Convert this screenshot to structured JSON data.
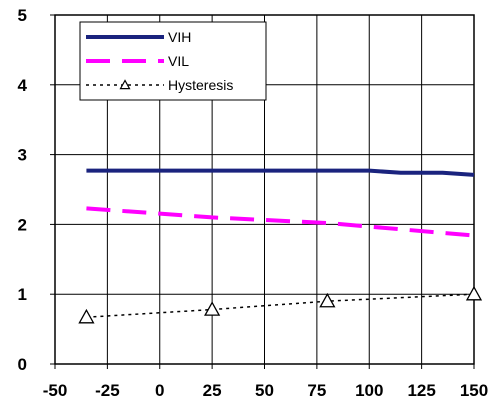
{
  "chart_data": {
    "type": "line",
    "title": "",
    "xlabel": "",
    "ylabel": "",
    "xlim": [
      -50,
      150
    ],
    "ylim": [
      0,
      5
    ],
    "x_ticks": [
      -50,
      -25,
      0,
      25,
      50,
      75,
      100,
      125,
      150
    ],
    "y_ticks": [
      0,
      1,
      2,
      3,
      4,
      5
    ],
    "grid": true,
    "legend_position": "top-left",
    "series": [
      {
        "name": "VIH",
        "style": "solid",
        "color": "#1a237e",
        "x": [
          -35,
          25,
          80,
          100,
          115,
          135,
          150
        ],
        "y": [
          2.77,
          2.77,
          2.77,
          2.77,
          2.74,
          2.74,
          2.71
        ]
      },
      {
        "name": "VIL",
        "style": "dashed",
        "color": "#ff00ff",
        "x": [
          -35,
          25,
          80,
          150
        ],
        "y": [
          2.23,
          2.1,
          2.02,
          1.84
        ]
      },
      {
        "name": "Hysteresis",
        "style": "dotted",
        "color": "#000000",
        "marker": "triangle",
        "x": [
          -35,
          25,
          80,
          150
        ],
        "y": [
          0.67,
          0.78,
          0.9,
          1.0
        ]
      }
    ]
  }
}
